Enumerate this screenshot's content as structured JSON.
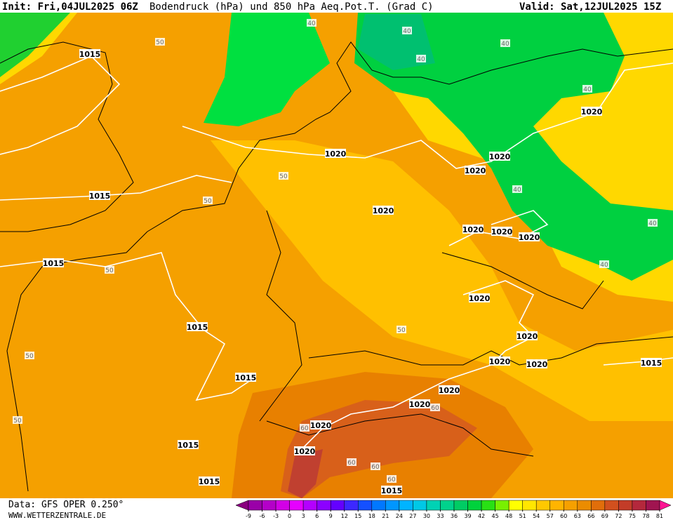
{
  "header": {
    "init": "Init: Fri,04JUL2025 06Z",
    "title": "Bodendruck (hPa) und 850 hPa Aeq.Pot.T. (Grad C)",
    "valid": "Valid: Sat,12JUL2025 15Z"
  },
  "footer": {
    "data": "Data: GFS OPER 0.250°",
    "site": "WWW.WETTERZENTRALE.DE"
  },
  "legend": {
    "ticks": [
      -9,
      -6,
      -3,
      0,
      3,
      6,
      9,
      12,
      15,
      18,
      21,
      24,
      27,
      30,
      33,
      36,
      39,
      42,
      45,
      48,
      51,
      54,
      57,
      60,
      63,
      66,
      69,
      72,
      75,
      78,
      81
    ],
    "colors": [
      "#8a0080",
      "#9a00a8",
      "#b400c8",
      "#d200e6",
      "#e600ff",
      "#b400ff",
      "#8c00ff",
      "#6400ff",
      "#3c28ff",
      "#1450ff",
      "#0078ff",
      "#0096ff",
      "#00b4ff",
      "#00c8e6",
      "#00d2b4",
      "#00d28c",
      "#00cc64",
      "#00d23c",
      "#28e014",
      "#78f000",
      "#ffff00",
      "#ffe600",
      "#ffc800",
      "#ffb400",
      "#f5a000",
      "#eb8c00",
      "#e16e0a",
      "#d2501e",
      "#c33c28",
      "#b4283c",
      "#a01450",
      "#ff1493"
    ]
  },
  "map": {
    "isobar_labels": [
      "1015",
      "1015",
      "1015",
      "1015",
      "1015",
      "1015",
      "1015",
      "1015",
      "1015",
      "1020",
      "1020",
      "1020",
      "1020",
      "1020",
      "1020",
      "1020",
      "1020",
      "1020",
      "1020",
      "1020",
      "1020",
      "1020",
      "1020",
      "1020",
      "1020"
    ],
    "theta_labels": [
      "40",
      "40",
      "40",
      "40",
      "40",
      "40",
      "40",
      "40",
      "50",
      "50",
      "50",
      "50",
      "50",
      "50",
      "50",
      "60",
      "60",
      "60",
      "60",
      "60"
    ]
  }
}
